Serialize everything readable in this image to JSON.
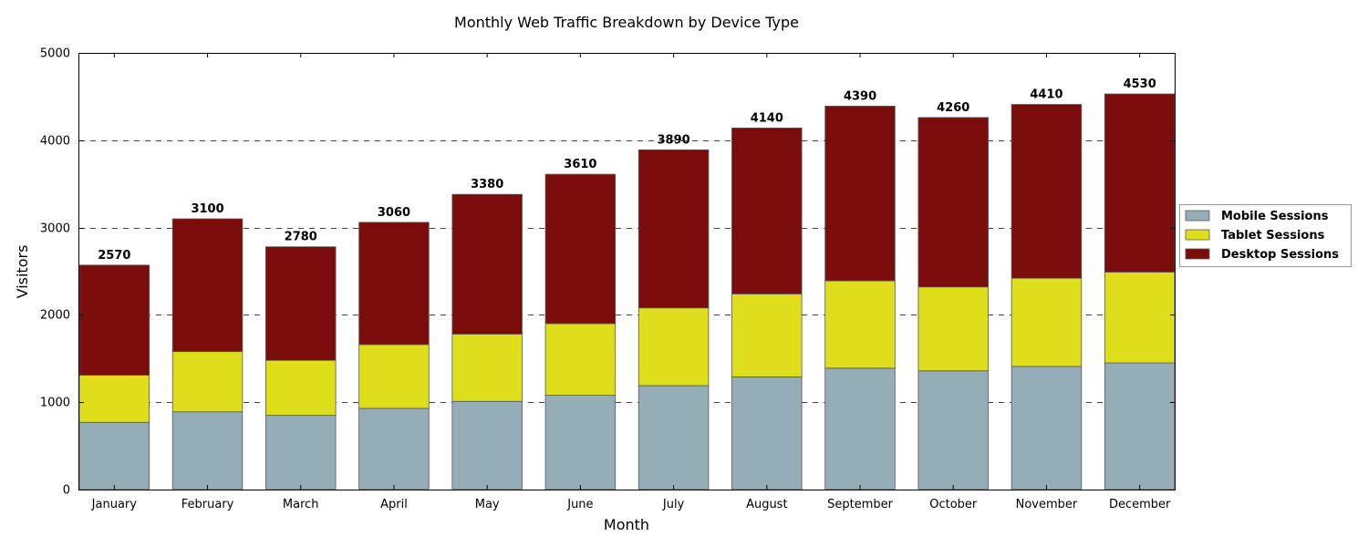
{
  "chart_data": {
    "type": "bar",
    "stacked": true,
    "title": "Monthly Web Traffic Breakdown by Device Type",
    "xlabel": "Month",
    "ylabel": "Visitors",
    "ylim": [
      0,
      5000
    ],
    "yticks": [
      0,
      1000,
      2000,
      3000,
      4000,
      5000
    ],
    "grid": "horizontal-dashed",
    "legend_position": "right",
    "categories": [
      "January",
      "February",
      "March",
      "April",
      "May",
      "June",
      "July",
      "August",
      "September",
      "October",
      "November",
      "December"
    ],
    "series": [
      {
        "name": "Mobile Sessions",
        "color": "#95adb6",
        "values": [
          770,
          890,
          850,
          930,
          1010,
          1080,
          1190,
          1290,
          1390,
          1360,
          1410,
          1450
        ]
      },
      {
        "name": "Tablet Sessions",
        "color": "#dede1a",
        "values": [
          540,
          690,
          630,
          730,
          770,
          820,
          890,
          950,
          1000,
          960,
          1010,
          1040
        ]
      },
      {
        "name": "Desktop Sessions",
        "color": "#7b0c0c",
        "values": [
          1260,
          1520,
          1300,
          1400,
          1600,
          1710,
          1810,
          1900,
          2000,
          1940,
          1990,
          2040
        ]
      }
    ],
    "totals": [
      2570,
      3100,
      2780,
      3060,
      3380,
      3610,
      3890,
      4140,
      4390,
      4260,
      4410,
      4530
    ]
  }
}
